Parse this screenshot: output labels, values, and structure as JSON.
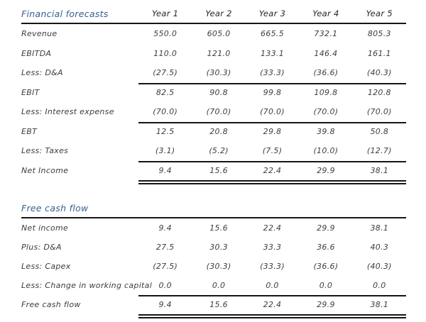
{
  "accent_color": "#365f91",
  "rule_color": "#161616",
  "forecasts": {
    "title": "Financial forecasts",
    "columns": [
      "Year 1",
      "Year 2",
      "Year 3",
      "Year 4",
      "Year 5"
    ],
    "rows": [
      {
        "label": "Revenue",
        "values": [
          "550.0",
          "605.0",
          "665.5",
          "732.1",
          "805.3"
        ]
      },
      {
        "label": "EBITDA",
        "values": [
          "110.0",
          "121.0",
          "133.1",
          "146.4",
          "161.1"
        ]
      },
      {
        "label": "Less: D&A",
        "values": [
          "(27.5)",
          "(30.3)",
          "(33.3)",
          "(36.6)",
          "(40.3)"
        ]
      },
      {
        "label": "EBIT",
        "values": [
          "82.5",
          "90.8",
          "99.8",
          "109.8",
          "120.8"
        ]
      },
      {
        "label": "Less: Interest expense",
        "values": [
          "(70.0)",
          "(70.0)",
          "(70.0)",
          "(70.0)",
          "(70.0)"
        ]
      },
      {
        "label": "EBT",
        "values": [
          "12.5",
          "20.8",
          "29.8",
          "39.8",
          "50.8"
        ]
      },
      {
        "label": "Less: Taxes",
        "values": [
          "(3.1)",
          "(5.2)",
          "(7.5)",
          "(10.0)",
          "(12.7)"
        ]
      },
      {
        "label": "Net Income",
        "values": [
          "9.4",
          "15.6",
          "22.4",
          "29.9",
          "38.1"
        ]
      }
    ]
  },
  "fcf": {
    "title": "Free cash flow",
    "rows": [
      {
        "label": "Net income",
        "values": [
          "9.4",
          "15.6",
          "22.4",
          "29.9",
          "38.1"
        ]
      },
      {
        "label": "Plus: D&A",
        "values": [
          "27.5",
          "30.3",
          "33.3",
          "36.6",
          "40.3"
        ]
      },
      {
        "label": "Less: Capex",
        "values": [
          "(27.5)",
          "(30.3)",
          "(33.3)",
          "(36.6)",
          "(40.3)"
        ]
      },
      {
        "label": "Less: Change in working capital",
        "values": [
          "0.0",
          "0.0",
          "0.0",
          "0.0",
          "0.0"
        ]
      },
      {
        "label": "Free cash flow",
        "values": [
          "9.4",
          "15.6",
          "22.4",
          "29.9",
          "38.1"
        ]
      }
    ]
  }
}
